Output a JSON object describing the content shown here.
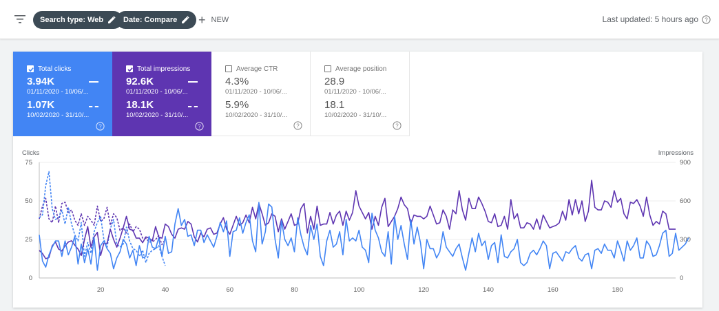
{
  "toolbar": {
    "chip_search_type": "Search type: Web",
    "chip_date": "Date: Compare",
    "new_label": "NEW",
    "last_updated": "Last updated: 5 hours ago"
  },
  "metrics": {
    "clicks": {
      "label": "Total clicks",
      "value1": "3.94K",
      "date1": "01/11/2020 - 10/06/...",
      "value2": "1.07K",
      "date2": "10/02/2020 - 31/10/...",
      "checked": true
    },
    "impressions": {
      "label": "Total impressions",
      "value1": "92.6K",
      "date1": "01/11/2020 - 10/06/...",
      "value2": "18.1K",
      "date2": "10/02/2020 - 31/10/...",
      "checked": true
    },
    "ctr": {
      "label": "Average CTR",
      "value1": "4.3%",
      "date1": "01/11/2020 - 10/06/...",
      "value2": "5.9%",
      "date2": "10/02/2020 - 31/10/...",
      "checked": false
    },
    "position": {
      "label": "Average position",
      "value1": "28.9",
      "date1": "01/11/2020 - 10/06/...",
      "value2": "18.1",
      "date2": "10/02/2020 - 31/10/...",
      "checked": false
    }
  },
  "colors": {
    "clicks": "#4285f4",
    "impressions": "#5e35b1",
    "chip_bg": "#3c4a55"
  },
  "chart_data": {
    "type": "line",
    "left_axis_label": "Clicks",
    "right_axis_label": "Impressions",
    "left_ylim": [
      0,
      75
    ],
    "right_ylim": [
      0,
      900
    ],
    "left_ticks": [
      "0",
      "25",
      "50",
      "75"
    ],
    "right_ticks": [
      "0",
      "300",
      "600",
      "900"
    ],
    "xlim": [
      1,
      198
    ],
    "x_ticks": [
      "20",
      "40",
      "60",
      "80",
      "100",
      "120",
      "140",
      "160",
      "180"
    ],
    "grid": true,
    "series": [
      {
        "name": "Total clicks",
        "axis": "left",
        "style": "solid",
        "color": "#4285f4",
        "values": [
          28,
          11,
          7,
          15,
          20,
          24,
          24,
          14,
          24,
          15,
          20,
          27,
          9,
          22,
          10,
          19,
          9,
          26,
          5,
          21,
          24,
          19,
          16,
          6,
          13,
          17,
          25,
          22,
          13,
          18,
          8,
          21,
          13,
          14,
          27,
          20,
          19,
          26,
          14,
          27,
          16,
          17,
          35,
          45,
          34,
          38,
          27,
          28,
          21,
          31,
          31,
          23,
          28,
          24,
          20,
          27,
          36,
          30,
          37,
          14,
          30,
          31,
          39,
          29,
          36,
          41,
          24,
          17,
          49,
          22,
          30,
          48,
          46,
          25,
          13,
          37,
          25,
          21,
          26,
          17,
          39,
          28,
          20,
          15,
          34,
          25,
          35,
          14,
          8,
          24,
          31,
          20,
          22,
          30,
          15,
          38,
          24,
          26,
          24,
          31,
          20,
          18,
          10,
          42,
          31,
          26,
          17,
          14,
          30,
          9,
          40,
          25,
          34,
          22,
          12,
          38,
          22,
          33,
          23,
          6,
          25,
          19,
          19,
          13,
          17,
          30,
          20,
          17,
          14,
          19,
          22,
          13,
          5,
          16,
          26,
          17,
          29,
          21,
          24,
          12,
          21,
          23,
          10,
          28,
          14,
          13,
          17,
          19,
          25,
          10,
          8,
          10,
          16,
          18,
          15,
          19,
          24,
          21,
          6,
          16,
          17,
          14,
          11,
          17,
          16,
          19,
          21,
          13,
          11,
          15,
          16,
          6,
          18,
          19,
          16,
          22,
          18,
          18,
          13,
          24,
          18,
          11,
          24,
          18,
          21,
          26,
          13,
          13,
          24,
          21,
          14,
          15,
          21,
          29,
          31,
          14,
          16,
          29,
          18,
          20,
          22,
          26
        ]
      },
      {
        "name": "Total impressions",
        "axis": "right",
        "style": "solid",
        "color": "#5e35b1",
        "values": [
          215,
          190,
          150,
          160,
          250,
          280,
          225,
          210,
          250,
          280,
          290,
          255,
          225,
          175,
          300,
          400,
          240,
          320,
          355,
          175,
          270,
          270,
          380,
          300,
          240,
          310,
          390,
          480,
          380,
          370,
          310,
          310,
          275,
          320,
          310,
          290,
          400,
          320,
          310,
          420,
          400,
          340,
          310,
          380,
          390,
          380,
          440,
          420,
          320,
          280,
          350,
          320,
          380,
          390,
          340,
          350,
          420,
          470,
          380,
          340,
          410,
          480,
          410,
          430,
          490,
          430,
          550,
          460,
          580,
          500,
          410,
          430,
          500,
          480,
          360,
          460,
          380,
          440,
          500,
          410,
          420,
          540,
          580,
          350,
          480,
          380,
          560,
          410,
          420,
          420,
          510,
          420,
          490,
          520,
          410,
          520,
          450,
          510,
          680,
          560,
          510,
          460,
          510,
          380,
          480,
          410,
          550,
          620,
          400,
          440,
          480,
          540,
          630,
          570,
          540,
          420,
          490,
          480,
          480,
          460,
          480,
          560,
          490,
          420,
          430,
          530,
          480,
          380,
          530,
          500,
          680,
          530,
          450,
          620,
          540,
          540,
          630,
          580,
          520,
          440,
          430,
          500,
          400,
          410,
          480,
          380,
          610,
          460,
          500,
          390,
          390,
          430,
          420,
          380,
          460,
          380,
          490,
          440,
          390,
          400,
          410,
          430,
          520,
          450,
          610,
          490,
          610,
          500,
          600,
          440,
          520,
          760,
          550,
          530,
          530,
          600,
          590,
          550,
          680,
          590,
          620,
          500,
          460,
          590,
          580,
          610,
          560,
          480,
          630,
          490,
          410,
          440,
          420,
          520,
          500,
          380,
          380,
          380
        ]
      },
      {
        "name": "Total clicks (compare)",
        "axis": "left",
        "style": "dashed",
        "color": "#4285f4",
        "values": [
          39,
          41,
          60,
          69,
          45,
          38,
          39,
          44,
          35,
          46,
          35,
          28,
          24,
          36,
          14,
          23,
          16,
          30,
          36,
          40,
          25,
          20,
          32,
          38,
          22,
          20,
          22,
          33,
          24,
          19,
          18,
          14,
          18,
          10,
          16,
          18,
          19,
          21,
          14,
          8
        ]
      },
      {
        "name": "Total impressions (compare)",
        "axis": "right",
        "style": "dashed",
        "color": "#5e35b1",
        "values": [
          460,
          560,
          620,
          460,
          430,
          560,
          430,
          580,
          590,
          510,
          530,
          450,
          410,
          500,
          410,
          480,
          450,
          410,
          560,
          440,
          460,
          550,
          410,
          500,
          470,
          370,
          390,
          350,
          420,
          360,
          400,
          380,
          310,
          310,
          280,
          280,
          300,
          330,
          260,
          300
        ]
      }
    ]
  }
}
